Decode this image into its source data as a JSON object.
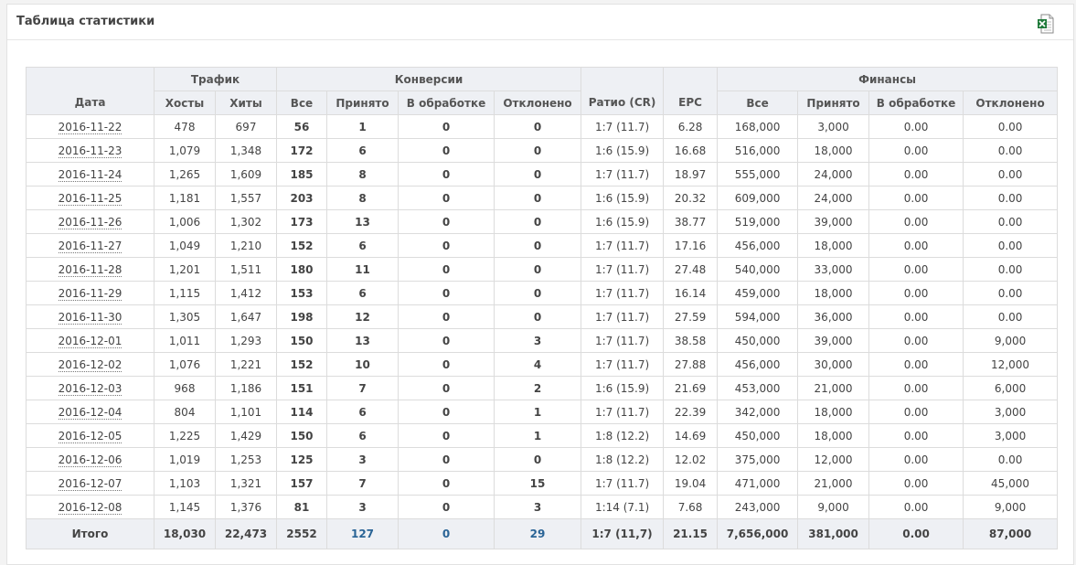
{
  "panel": {
    "title": "Таблица статистики",
    "export_icon": "excel-export-icon"
  },
  "groups": {
    "traffic": "Трафик",
    "conversions": "Конверсии",
    "finance": "Финансы"
  },
  "columns": {
    "date": "Дата",
    "hosts": "Хосты",
    "hits": "Хиты",
    "conv_all": "Все",
    "conv_accepted": "Принято",
    "conv_pending": "В обработке",
    "conv_rejected": "Отклонено",
    "ratio": "Ратио (CR)",
    "epc": "EPC",
    "fin_all": "Все",
    "fin_accepted": "Принято",
    "fin_pending": "В обработке",
    "fin_rejected": "Отклонено"
  },
  "rows": [
    [
      "2016-11-22",
      "478",
      "697",
      "56",
      "1",
      "0",
      "0",
      "1:7 (11.7)",
      "6.28",
      "168,000",
      "3,000",
      "0.00",
      "0.00"
    ],
    [
      "2016-11-23",
      "1,079",
      "1,348",
      "172",
      "6",
      "0",
      "0",
      "1:6 (15.9)",
      "16.68",
      "516,000",
      "18,000",
      "0.00",
      "0.00"
    ],
    [
      "2016-11-24",
      "1,265",
      "1,609",
      "185",
      "8",
      "0",
      "0",
      "1:7 (11.7)",
      "18.97",
      "555,000",
      "24,000",
      "0.00",
      "0.00"
    ],
    [
      "2016-11-25",
      "1,181",
      "1,557",
      "203",
      "8",
      "0",
      "0",
      "1:6 (15.9)",
      "20.32",
      "609,000",
      "24,000",
      "0.00",
      "0.00"
    ],
    [
      "2016-11-26",
      "1,006",
      "1,302",
      "173",
      "13",
      "0",
      "0",
      "1:6 (15.9)",
      "38.77",
      "519,000",
      "39,000",
      "0.00",
      "0.00"
    ],
    [
      "2016-11-27",
      "1,049",
      "1,210",
      "152",
      "6",
      "0",
      "0",
      "1:7 (11.7)",
      "17.16",
      "456,000",
      "18,000",
      "0.00",
      "0.00"
    ],
    [
      "2016-11-28",
      "1,201",
      "1,511",
      "180",
      "11",
      "0",
      "0",
      "1:7 (11.7)",
      "27.48",
      "540,000",
      "33,000",
      "0.00",
      "0.00"
    ],
    [
      "2016-11-29",
      "1,115",
      "1,412",
      "153",
      "6",
      "0",
      "0",
      "1:7 (11.7)",
      "16.14",
      "459,000",
      "18,000",
      "0.00",
      "0.00"
    ],
    [
      "2016-11-30",
      "1,305",
      "1,647",
      "198",
      "12",
      "0",
      "0",
      "1:7 (11.7)",
      "27.59",
      "594,000",
      "36,000",
      "0.00",
      "0.00"
    ],
    [
      "2016-12-01",
      "1,011",
      "1,293",
      "150",
      "13",
      "0",
      "3",
      "1:7 (11.7)",
      "38.58",
      "450,000",
      "39,000",
      "0.00",
      "9,000"
    ],
    [
      "2016-12-02",
      "1,076",
      "1,221",
      "152",
      "10",
      "0",
      "4",
      "1:7 (11.7)",
      "27.88",
      "456,000",
      "30,000",
      "0.00",
      "12,000"
    ],
    [
      "2016-12-03",
      "968",
      "1,186",
      "151",
      "7",
      "0",
      "2",
      "1:6 (15.9)",
      "21.69",
      "453,000",
      "21,000",
      "0.00",
      "6,000"
    ],
    [
      "2016-12-04",
      "804",
      "1,101",
      "114",
      "6",
      "0",
      "1",
      "1:7 (11.7)",
      "22.39",
      "342,000",
      "18,000",
      "0.00",
      "3,000"
    ],
    [
      "2016-12-05",
      "1,225",
      "1,429",
      "150",
      "6",
      "0",
      "1",
      "1:8 (12.2)",
      "14.69",
      "450,000",
      "18,000",
      "0.00",
      "3,000"
    ],
    [
      "2016-12-06",
      "1,019",
      "1,253",
      "125",
      "3",
      "0",
      "0",
      "1:8 (12.2)",
      "12.02",
      "375,000",
      "12,000",
      "0.00",
      "0.00"
    ],
    [
      "2016-12-07",
      "1,103",
      "1,321",
      "157",
      "7",
      "0",
      "15",
      "1:7 (11.7)",
      "19.04",
      "471,000",
      "21,000",
      "0.00",
      "45,000"
    ],
    [
      "2016-12-08",
      "1,145",
      "1,376",
      "81",
      "3",
      "0",
      "3",
      "1:14 (7.1)",
      "7.68",
      "243,000",
      "9,000",
      "0.00",
      "9,000"
    ]
  ],
  "totals": [
    "Итого",
    "18,030",
    "22,473",
    "2552",
    "127",
    "0",
    "29",
    "1:7 (11,7)",
    "21.15",
    "7,656,000",
    "381,000",
    "0.00",
    "87,000"
  ],
  "colors": {
    "link": "#2a6496",
    "header_bg": "#eef0f4",
    "border": "#dcdcdc"
  }
}
